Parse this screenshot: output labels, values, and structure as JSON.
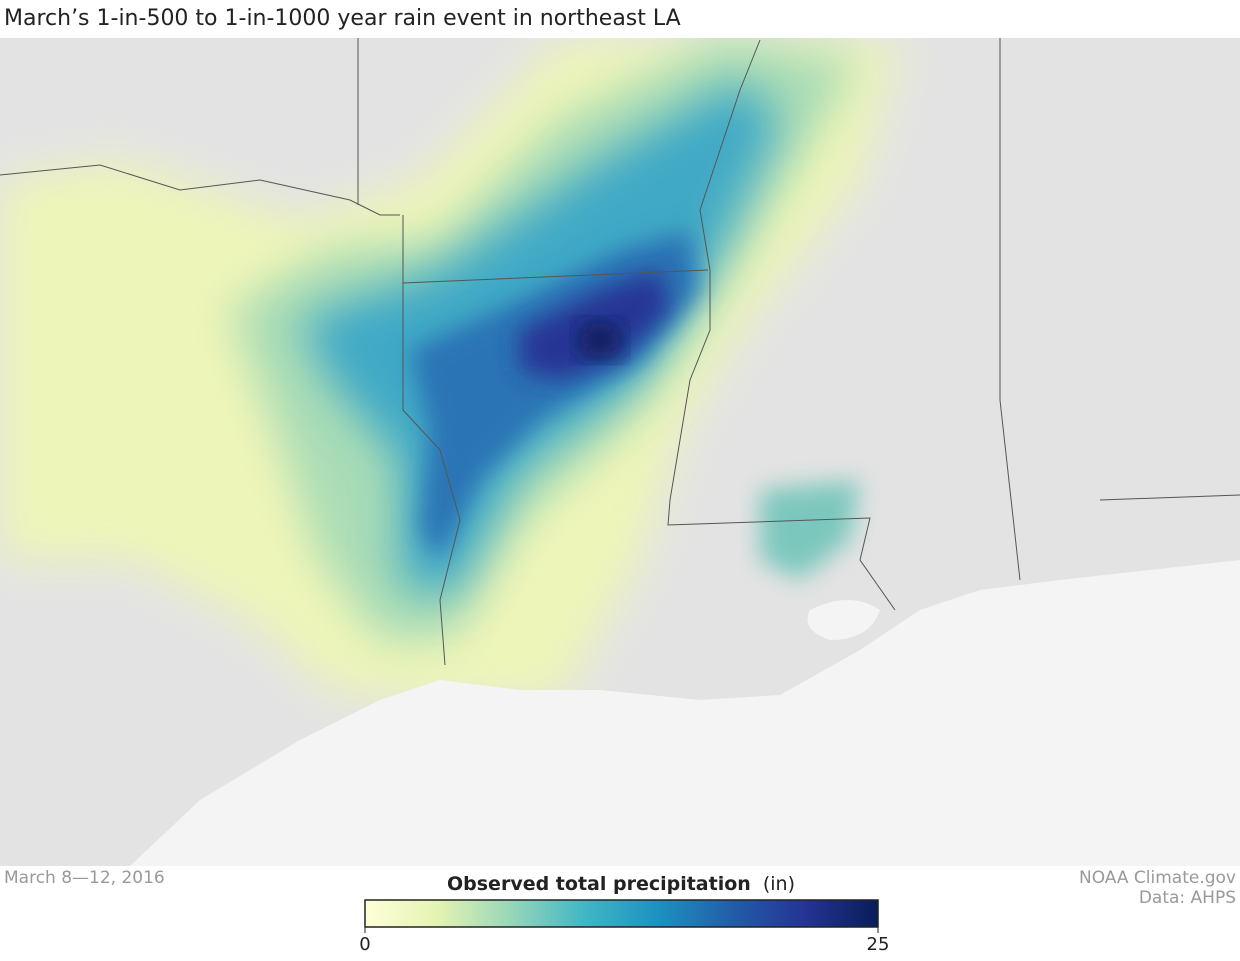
{
  "header": {
    "title": "March’s 1-in-500 to 1-in-1000 year rain event in northeast LA"
  },
  "footer": {
    "date": "March 8—12, 2016",
    "credit": [
      "NOAA Climate.gov",
      "Data: AHPS"
    ]
  },
  "legend": {
    "title": "Observed total precipitation",
    "unit": "(in)",
    "min": 0,
    "max": 25,
    "colors": [
      "#ffffd9",
      "#e3f3b2",
      "#97d6b9",
      "#41b6c4",
      "#1d91c0",
      "#225ea8",
      "#253494",
      "#081d58"
    ]
  }
}
